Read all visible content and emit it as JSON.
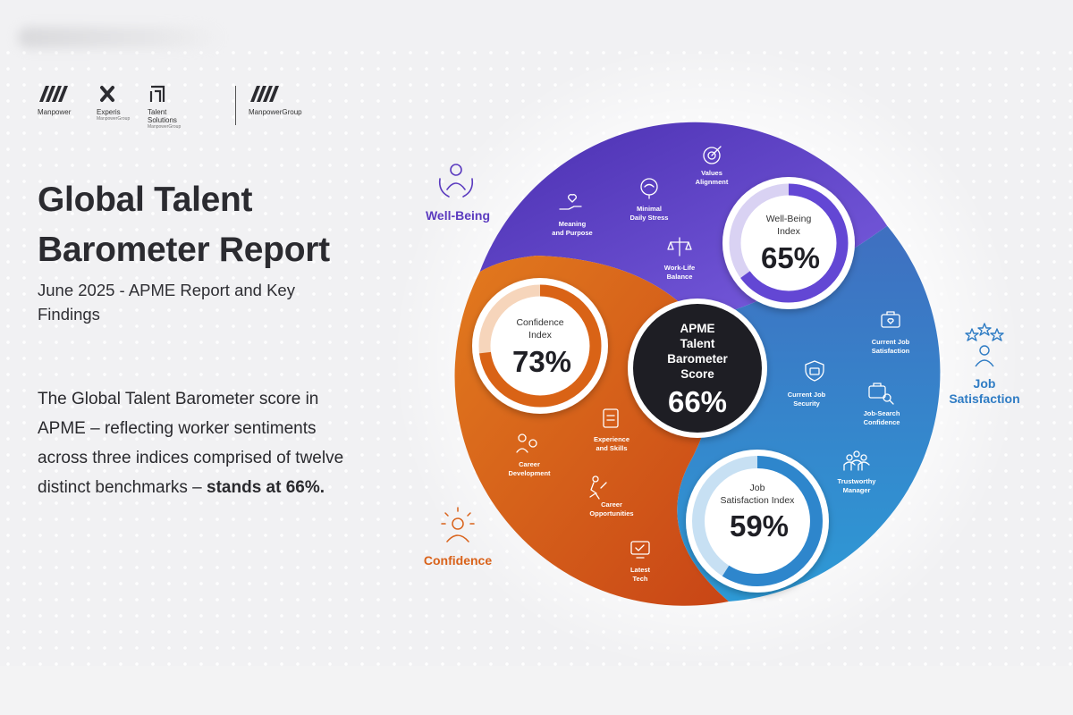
{
  "brand": {
    "logos": [
      {
        "label": "Manpower",
        "sub": ""
      },
      {
        "label": "Experis",
        "sub": "ManpowerGroup"
      },
      {
        "label": "Talent Solutions",
        "sub": "ManpowerGroup"
      },
      {
        "label": "ManpowerGroup",
        "sub": ""
      }
    ]
  },
  "header": {
    "title_line1": "Global Talent",
    "title_line2": "Barometer Report",
    "subtitle": "June 2025 - APME Report and Key Findings"
  },
  "description": {
    "text": "The Global Talent Barometer score in APME – reflecting worker sentiments across three indices comprised of twelve distinct benchmarks – ",
    "highlight": "stands at 66%."
  },
  "center": {
    "line1": "APME",
    "line2": "Talent",
    "line3": "Barometer",
    "line4": "Score",
    "value": "66%"
  },
  "categories": {
    "wellbeing": {
      "label": "Well-Being",
      "color": "#5a3fc0"
    },
    "job_satisfaction": {
      "label_line1": "Job",
      "label_line2": "Satisfaction",
      "color": "#2e82c8"
    },
    "confidence": {
      "label": "Confidence",
      "color": "#d9631a"
    }
  },
  "gauges": {
    "wellbeing": {
      "label_line1": "Well-Being",
      "label_line2": "Index",
      "value": "65%",
      "fraction": 0.65
    },
    "confidence": {
      "label_line1": "Confidence",
      "label_line2": "Index",
      "value": "73%",
      "fraction": 0.73
    },
    "job_satisfaction": {
      "label_line1": "Job",
      "label_line2": "Satisfaction Index",
      "value": "59%",
      "fraction": 0.59
    }
  },
  "benchmarks": {
    "values_alignment": {
      "l1": "Values",
      "l2": "Alignment"
    },
    "minimal_stress": {
      "l1": "Minimal",
      "l2": "Daily Stress"
    },
    "meaning_purpose": {
      "l1": "Meaning",
      "l2": "and Purpose"
    },
    "work_life": {
      "l1": "Work-Life",
      "l2": "Balance"
    },
    "current_job_satisfaction": {
      "l1": "Current Job",
      "l2": "Satisfaction"
    },
    "current_job_security": {
      "l1": "Current Job",
      "l2": "Security"
    },
    "job_search_confidence": {
      "l1": "Job-Search",
      "l2": "Confidence"
    },
    "trustworthy_manager": {
      "l1": "Trustworthy",
      "l2": "Manager"
    },
    "experience_skills": {
      "l1": "Experience",
      "l2": "and Skills"
    },
    "career_development": {
      "l1": "Career",
      "l2": "Development"
    },
    "career_opportunities": {
      "l1": "Career",
      "l2": "Opportunities"
    },
    "latest_tech": {
      "l1": "Latest",
      "l2": "Tech"
    }
  },
  "colors": {
    "purple": "#5b3bbf",
    "blue": "#2f7cc4",
    "orange": "#d9621a",
    "center": "#1e1e24"
  }
}
